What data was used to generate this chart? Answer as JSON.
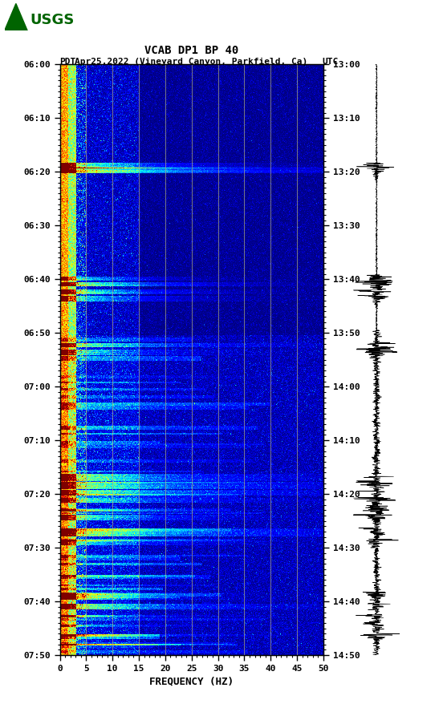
{
  "title_line1": "VCAB DP1 BP 40",
  "title_line2_left": "PDT",
  "title_line2_mid": "Apr25,2022 (Vineyard Canyon, Parkfield, Ca)",
  "title_line2_right": "UTC",
  "xlabel": "FREQUENCY (HZ)",
  "freq_min": 0,
  "freq_max": 50,
  "freq_ticks": [
    0,
    5,
    10,
    15,
    20,
    25,
    30,
    35,
    40,
    45,
    50
  ],
  "time_ticks_left": [
    "06:00",
    "06:10",
    "06:20",
    "06:30",
    "06:40",
    "06:50",
    "07:00",
    "07:10",
    "07:20",
    "07:30",
    "07:40",
    "07:50"
  ],
  "time_ticks_right": [
    "13:00",
    "13:10",
    "13:20",
    "13:30",
    "13:40",
    "13:50",
    "14:00",
    "14:10",
    "14:20",
    "14:30",
    "14:40",
    "14:50"
  ],
  "bg_color": "#ffffff",
  "colormap": "jet",
  "usgs_logo_color": "#006400",
  "title_fontsize": 10,
  "tick_fontsize": 8,
  "label_fontsize": 9,
  "vertical_lines_freq": [
    5,
    10,
    15,
    20,
    25,
    30,
    35,
    40,
    45
  ],
  "seed": 42,
  "event_times_min": [
    20.5,
    21.5,
    43.5,
    44.8,
    46.2,
    47.5,
    57.0,
    58.5,
    84.0,
    85.5,
    87.0,
    88.5,
    90.5,
    92.0,
    95.0,
    97.0,
    108.0,
    110.0,
    112.0,
    114.0,
    116.0
  ],
  "total_minutes": 120
}
